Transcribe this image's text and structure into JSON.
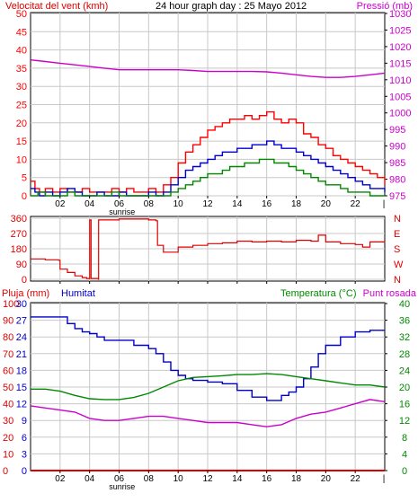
{
  "page": {
    "top_left_label": "Velocitat del vent (kmh)",
    "title": "24 hour graph day : 25 Mayo 2012",
    "top_right_label": "Pressió (mb)",
    "x_ticks": [
      "02",
      "04",
      "06",
      "08",
      "10",
      "12",
      "14",
      "16",
      "18",
      "20",
      "22"
    ],
    "x_tick_hours": [
      2,
      4,
      6,
      8,
      10,
      12,
      14,
      16,
      18,
      20,
      22
    ],
    "sunrise_label": "sunrise",
    "sunrise_hour": 6.2,
    "colors": {
      "wind_gust": "#ff0000",
      "wind_avg": "#0000cc",
      "wind_low": "#008800",
      "pressure": "#cc00cc",
      "direction": "#dd0000",
      "rain": "#dd0000",
      "humidity": "#0000cc",
      "temperature": "#008800",
      "dewpoint": "#cc00cc",
      "grid": "#c8c8c8"
    }
  },
  "chart_data": [
    {
      "type": "line",
      "panel": "wind_pressure",
      "left_axis_label": "Velocitat del vent (kmh)",
      "right_axis_label": "Pressió (mb)",
      "y_left_ticks": [
        0,
        5,
        10,
        15,
        20,
        25,
        30,
        35,
        40,
        45,
        50
      ],
      "y_right_ticks": [
        975,
        980,
        985,
        990,
        995,
        1000,
        1005,
        1010,
        1015,
        1020,
        1025,
        1030
      ],
      "ylim_left": [
        0,
        50
      ],
      "ylim_right": [
        975,
        1030
      ],
      "x_range_hours": [
        0,
        24
      ],
      "grid": true,
      "series": [
        {
          "key": "gust",
          "axis": "left",
          "x": [
            0,
            0.3,
            0.6,
            1,
            1.5,
            2,
            2.5,
            3,
            3.5,
            4,
            4.5,
            5,
            5.5,
            6,
            6.5,
            7,
            7.5,
            8,
            8.5,
            9,
            9.5,
            10,
            10.5,
            11,
            11.5,
            12,
            12.5,
            13,
            13.5,
            14,
            14.5,
            15,
            15.5,
            16,
            16.5,
            17,
            17.5,
            18,
            18.5,
            19,
            19.5,
            20,
            20.5,
            21,
            21.5,
            22,
            22.5,
            23,
            23.5,
            24
          ],
          "y": [
            4,
            2,
            1,
            2,
            1,
            2,
            1,
            1,
            2,
            1,
            1,
            1,
            2,
            1,
            2,
            1,
            1,
            2,
            1,
            3,
            5,
            9,
            12,
            14,
            16,
            18,
            19,
            20,
            21,
            21,
            22,
            21,
            22,
            23,
            21,
            20,
            21,
            20,
            17,
            16,
            14,
            13,
            11,
            10,
            9,
            8,
            7,
            6,
            5,
            3
          ]
        },
        {
          "key": "average",
          "axis": "left",
          "x": [
            0,
            0.3,
            0.6,
            1,
            1.5,
            2,
            2.5,
            3,
            3.5,
            4,
            4.5,
            5,
            5.5,
            6,
            6.5,
            7,
            7.5,
            8,
            8.5,
            9,
            9.5,
            10,
            10.5,
            11,
            11.5,
            12,
            12.5,
            13,
            13.5,
            14,
            14.5,
            15,
            15.5,
            16,
            16.5,
            17,
            17.5,
            18,
            18.5,
            19,
            19.5,
            20,
            20.5,
            21,
            21.5,
            22,
            22.5,
            23,
            23.5,
            24
          ],
          "y": [
            2,
            1,
            0,
            1,
            0,
            1,
            2,
            1,
            0,
            0,
            1,
            0,
            0,
            1,
            0,
            0,
            0,
            1,
            0,
            1,
            3,
            5,
            7,
            8,
            9,
            10,
            11,
            12,
            12,
            13,
            13,
            14,
            14,
            15,
            14,
            13,
            13,
            12,
            11,
            10,
            9,
            8,
            7,
            6,
            5,
            4,
            3,
            2,
            2,
            1
          ]
        },
        {
          "key": "low",
          "axis": "left",
          "x": [
            0,
            0.5,
            1,
            1.5,
            2,
            2.5,
            3,
            3.5,
            4,
            4.5,
            5,
            5.5,
            6,
            6.5,
            7,
            7.5,
            8,
            8.5,
            9,
            9.5,
            10,
            10.5,
            11,
            11.5,
            12,
            12.5,
            13,
            13.5,
            14,
            14.5,
            15,
            15.5,
            16,
            16.5,
            17,
            17.5,
            18,
            18.5,
            19,
            19.5,
            20,
            20.5,
            21,
            21.5,
            22,
            22.5,
            23,
            23.5,
            24
          ],
          "y": [
            0,
            1,
            0,
            0,
            0,
            1,
            0,
            0,
            0,
            0,
            0,
            1,
            0,
            0,
            0,
            0,
            0,
            0,
            0,
            1,
            2,
            3,
            4,
            5,
            6,
            6,
            7,
            8,
            8,
            9,
            9,
            10,
            10,
            9,
            9,
            8,
            7,
            6,
            5,
            4,
            3,
            3,
            2,
            1,
            1,
            1,
            0,
            0,
            0
          ]
        },
        {
          "key": "pressure",
          "axis": "right",
          "x": [
            0,
            1,
            2,
            3,
            4,
            5,
            6,
            7,
            8,
            9,
            10,
            11,
            12,
            13,
            14,
            15,
            16,
            17,
            18,
            19,
            20,
            21,
            22,
            23,
            24
          ],
          "y": [
            1016,
            1015.5,
            1015,
            1014.5,
            1014,
            1013.5,
            1013,
            1013,
            1013,
            1013,
            1013,
            1012.8,
            1012.5,
            1012.5,
            1012.5,
            1012.5,
            1012.4,
            1012,
            1011.5,
            1011,
            1010.7,
            1010.7,
            1011,
            1011.5,
            1012
          ]
        }
      ]
    },
    {
      "type": "line",
      "panel": "wind_direction",
      "y_left_ticks": [
        0,
        90,
        180,
        270,
        360
      ],
      "y_right_ticks": [
        "N",
        "W",
        "S",
        "E",
        "N"
      ],
      "ylim_left": [
        0,
        360
      ],
      "x_range_hours": [
        0,
        24
      ],
      "grid": true,
      "series": [
        {
          "key": "direction",
          "x": [
            0,
            1,
            1.9,
            2.0,
            2.5,
            3,
            3.5,
            3.8,
            4.0,
            4.01,
            4.1,
            4.5,
            4.6,
            4.61,
            4.62,
            5,
            6,
            7,
            8,
            8.5,
            8.6,
            9,
            10,
            11,
            12,
            13,
            14,
            15,
            16,
            17,
            18,
            19,
            19.5,
            20,
            21,
            22,
            22.5,
            23,
            24
          ],
          "y": [
            120,
            115,
            112,
            60,
            40,
            20,
            10,
            5,
            5,
            350,
            5,
            5,
            0,
            350,
            350,
            350,
            355,
            355,
            350,
            345,
            200,
            160,
            190,
            200,
            210,
            215,
            225,
            220,
            225,
            220,
            230,
            225,
            260,
            220,
            210,
            205,
            190,
            220,
            215
          ]
        }
      ]
    },
    {
      "type": "line",
      "panel": "rain_humidity_temperature",
      "left_axis_label": "Pluja (mm)",
      "humidity_label": "Humitat",
      "right_axis_label": "Temperatura (°C)",
      "dewpoint_label": "Punt rosada",
      "y_left_ticks": [
        0,
        3,
        6,
        9,
        12,
        15,
        18,
        21,
        24,
        27,
        30
      ],
      "y_humidity_ticks": [
        0,
        10,
        20,
        30,
        40,
        50,
        60,
        70,
        80,
        90,
        100
      ],
      "y_right_ticks": [
        0,
        4,
        8,
        12,
        16,
        20,
        24,
        28,
        32,
        36,
        40
      ],
      "ylim_humidity": [
        0,
        100
      ],
      "ylim_temperature": [
        0,
        40
      ],
      "x_range_hours": [
        0,
        24
      ],
      "grid": true,
      "series": [
        {
          "key": "rain",
          "axis": "rain",
          "x": [
            0,
            24
          ],
          "y": [
            0,
            0
          ]
        },
        {
          "key": "humidity",
          "axis": "humidity",
          "x": [
            0,
            1,
            2,
            2.5,
            3,
            3.5,
            4,
            4.5,
            5,
            6,
            7,
            8,
            8.5,
            9,
            9.5,
            10,
            10.5,
            11,
            12,
            13,
            14,
            15,
            16,
            17,
            17.5,
            18,
            18.5,
            19,
            19.5,
            20,
            21,
            22,
            23,
            24
          ],
          "y": [
            92,
            92,
            92,
            88,
            85,
            83,
            82,
            80,
            78,
            78,
            75,
            73,
            70,
            65,
            60,
            57,
            55,
            54,
            53,
            52,
            48,
            44,
            42,
            45,
            47,
            50,
            55,
            62,
            70,
            75,
            80,
            83,
            84,
            84
          ]
        },
        {
          "key": "temperature",
          "axis": "temperature",
          "x": [
            0,
            1,
            2,
            3,
            4,
            5,
            6,
            7,
            8,
            9,
            10,
            11,
            12,
            13,
            14,
            15,
            16,
            17,
            18,
            19,
            20,
            21,
            22,
            23,
            24
          ],
          "y": [
            19.5,
            19.5,
            19,
            18,
            17.2,
            17,
            17,
            17.5,
            18.5,
            20,
            21.5,
            22.3,
            22.5,
            22.7,
            23,
            23,
            23.2,
            23,
            22.5,
            22,
            21.5,
            21,
            20.5,
            20.5,
            20
          ]
        },
        {
          "key": "dewpoint",
          "axis": "temperature",
          "x": [
            0,
            1,
            2,
            3,
            4,
            5,
            6,
            7,
            8,
            9,
            10,
            11,
            12,
            13,
            14,
            15,
            16,
            17,
            18,
            19,
            20,
            21,
            22,
            23,
            24
          ],
          "y": [
            15.5,
            15,
            14.5,
            14,
            12.5,
            12,
            12,
            12.5,
            13,
            13,
            12.5,
            12,
            11.5,
            11.5,
            11.5,
            11,
            10.5,
            11,
            12.5,
            13.5,
            14,
            15,
            16,
            17,
            16.5
          ]
        }
      ]
    }
  ]
}
